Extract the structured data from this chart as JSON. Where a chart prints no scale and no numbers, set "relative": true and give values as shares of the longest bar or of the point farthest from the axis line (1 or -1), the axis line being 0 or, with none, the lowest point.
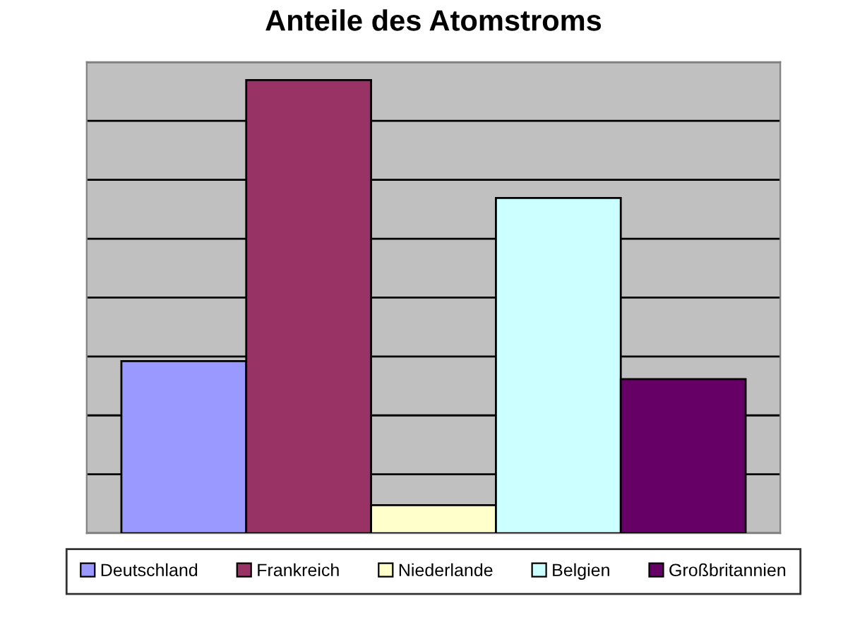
{
  "chart_data": {
    "type": "bar",
    "title": "Anteile des Atomstroms",
    "categories": [
      null
    ],
    "series": [
      {
        "name": "Deutschland",
        "color": "#9999ff",
        "values": [
          0.38
        ]
      },
      {
        "name": "Frankreich",
        "color": "#993366",
        "values": [
          1
        ]
      },
      {
        "name": "Niederlande",
        "color": "#ffffcc",
        "values": [
          0.062
        ]
      },
      {
        "name": "Belgien",
        "color": "#ccffff",
        "values": [
          0.74
        ]
      },
      {
        "name": "Großbritannien",
        "color": "#660066",
        "values": [
          0.34
        ]
      }
    ],
    "relative": true,
    "grid": "y",
    "legend": "bottom"
  }
}
